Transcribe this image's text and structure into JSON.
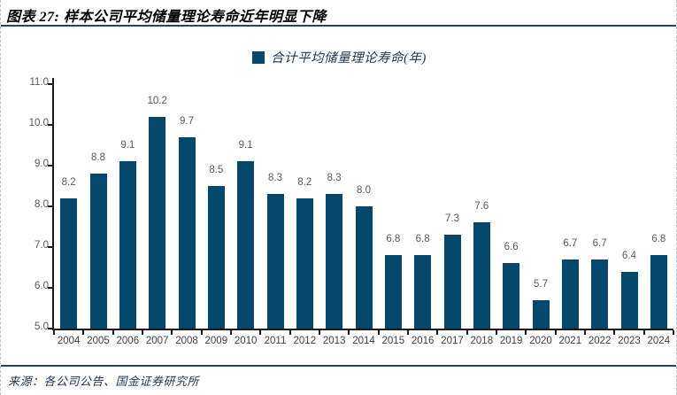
{
  "header": {
    "title": "图表 27: 样本公司平均储量理论寿命近年明显下降"
  },
  "legend": {
    "label": "合计平均储量理论寿命(年)",
    "marker_color": "#05486b"
  },
  "chart_data": {
    "type": "bar",
    "title": "图表 27: 样本公司平均储量理论寿命近年明显下降",
    "series_name": "合计平均储量理论寿命(年)",
    "categories": [
      "2004",
      "2005",
      "2006",
      "2007",
      "2008",
      "2009",
      "2010",
      "2011",
      "2012",
      "2013",
      "2014",
      "2015",
      "2016",
      "2017",
      "2018",
      "2019",
      "2020",
      "2021",
      "2022",
      "2023",
      "2024"
    ],
    "values": [
      8.2,
      8.8,
      9.1,
      10.2,
      9.7,
      8.5,
      9.1,
      8.3,
      8.2,
      8.3,
      8.0,
      6.8,
      6.8,
      7.3,
      7.6,
      6.6,
      5.7,
      6.7,
      6.7,
      6.4,
      6.8
    ],
    "xlabel": "",
    "ylabel": "",
    "ylim": [
      5.0,
      11.0
    ],
    "ytick_step": 1.0,
    "ytick_labels": [
      "5.0",
      "6.0",
      "7.0",
      "8.0",
      "9.0",
      "10.0",
      "11.0"
    ],
    "grid": false,
    "legend_position": "top-center",
    "bar_color": "#05486b",
    "data_label_color": "#595959",
    "data_labels_visible": true
  },
  "footer": {
    "source": "来源：各公司公告、国金证券研究所"
  }
}
